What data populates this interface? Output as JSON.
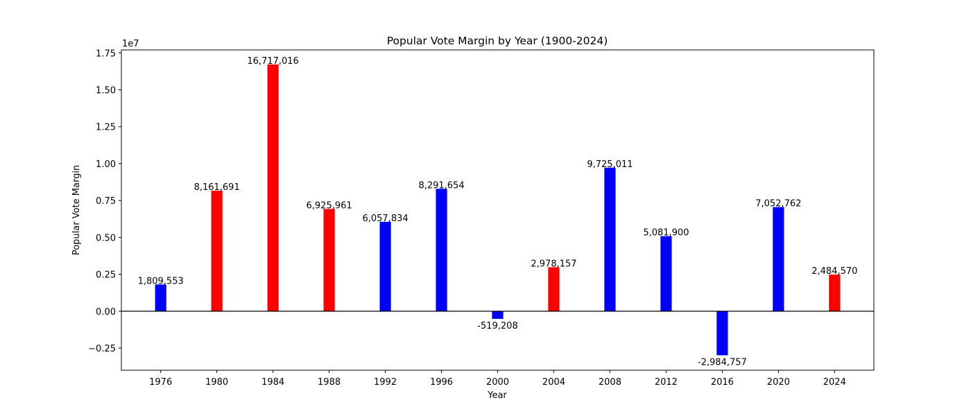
{
  "chart_data": {
    "type": "bar",
    "title": "Popular Vote Margin by Year (1900-2024)",
    "xlabel": "Year",
    "ylabel": "Popular Vote Margin",
    "y_offset_label": "1e7",
    "ylim": [
      -0.4,
      1.77
    ],
    "y_unit_scale": 10000000,
    "yticks": [
      -0.25,
      0.0,
      0.25,
      0.5,
      0.75,
      1.0,
      1.25,
      1.5,
      1.75
    ],
    "ytick_labels": [
      "−0.25",
      "0.00",
      "0.25",
      "0.50",
      "0.75",
      "1.00",
      "1.25",
      "1.50",
      "1.75"
    ],
    "grid": false,
    "zero_line": true,
    "categories": [
      "1976",
      "1980",
      "1984",
      "1988",
      "1992",
      "1996",
      "2000",
      "2004",
      "2008",
      "2012",
      "2016",
      "2020",
      "2024"
    ],
    "values": [
      1809553,
      8161691,
      16717016,
      6925961,
      6057834,
      8291654,
      -519208,
      2978157,
      9725011,
      5081900,
      -2984757,
      7052762,
      2484570
    ],
    "value_labels": [
      "1,809,553",
      "8,161,691",
      "16,717,016",
      "6,925,961",
      "6,057,834",
      "8,291,654",
      "-519,208",
      "2,978,157",
      "9,725,011",
      "5,081,900",
      "-2,984,757",
      "7,052,762",
      "2,484,570"
    ],
    "bar_colors": [
      "blue",
      "red",
      "red",
      "red",
      "blue",
      "blue",
      "blue",
      "red",
      "blue",
      "blue",
      "blue",
      "blue",
      "red"
    ],
    "palette": {
      "blue": "#0000ff",
      "red": "#ff0000"
    }
  }
}
